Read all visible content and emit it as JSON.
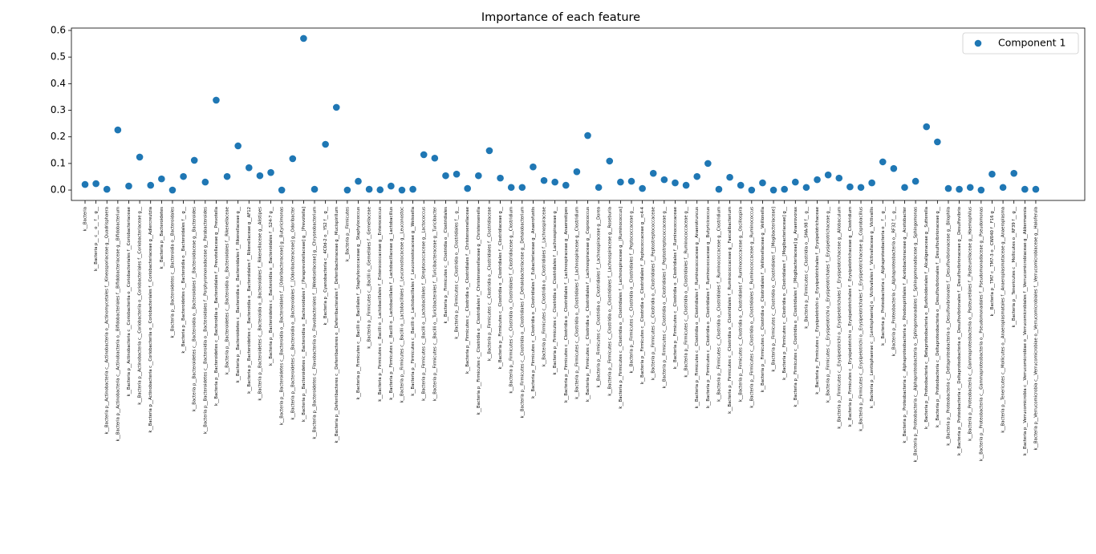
{
  "chart_data": {
    "type": "scatter",
    "title": "Importance of each feature",
    "categories": [
      "k__Bacteria",
      "k__Bacteria p__ c__ o__ f__ g__",
      "k__Bacteria p__Actinobacteria c__Actinobacteria o__Actinomycetales f__Kineosporiaceae g__Quadrisphaera",
      "k__Bacteria p__Actinobacteria c__Actinobacteria o__Bifidobacteriales f__Bifidobacteriaceae g__Bifidobacterium",
      "k__Bacteria p__Actinobacteria c__Coriobacteriia o__Coriobacteriales f__Coriobacteriaceae",
      "k__Bacteria p__Actinobacteria c__Coriobacteriia o__Coriobacteriales f__Coriobacteriaceae g__",
      "k__Bacteria p__Actinobacteria c__Coriobacteriia o__Coriobacteriales f__Coriobacteriaceae g__Adlercreutzia",
      "k__Bacteria p__Bacteroidetes",
      "k__Bacteria p__Bacteroidetes c__Bacteroidia o__Bacteroidales",
      "k__Bacteria p__Bacteroidetes c__Bacteroidia o__Bacteroidales f__ g__",
      "k__Bacteria p__Bacteroidetes c__Bacteroidia o__Bacteroidales f__Bacteroidaceae g__Bacteroides",
      "k__Bacteria p__Bacteroidetes c__Bacteroidia o__Bacteroidales f__Porphyromonadaceae g__Parabacteroides",
      "k__Bacteria p__Bacteroidetes c__Bacteroidia o__Bacteroidales f__Prevotellaceae g__Prevotella",
      "k__Bacteria p__Bacteroidetes c__Bacteroidia o__Bacteroidales f__Rikenellaceae",
      "k__Bacteria p__Bacteroidetes c__Bacteroidia o__Bacteroidales f__Rikenellaceae g__",
      "k__Bacteria p__Bacteroidetes c__Bacteroidia o__Bacteroidales f__Rikenellaceae g__AF12",
      "k__Bacteria p__Bacteroidetes c__Bacteroidia o__Bacteroidales f__Rikenellaceae g__Alistipes",
      "k__Bacteria p__Bacteroidetes c__Bacteroidia o__Bacteroidales f__S24-7 g__",
      "k__Bacteria p__Bacteroidetes c__Bacteroidia o__Bacteroidales f__[Odoribacteraceae] g__Butyricimonas",
      "k__Bacteria p__Bacteroidetes c__Bacteroidia o__Bacteroidales f__[Odoribacteraceae] g__Odoribacter",
      "k__Bacteria p__Bacteroidetes c__Bacteroidia o__Bacteroidales f__[Paraprevotellaceae] g__[Prevotella]",
      "k__Bacteria p__Bacteroidetes c__Flavobacteriia o__Flavobacteriales f__[Weeksellaceae] g__Chryseobacterium",
      "k__Bacteria p__Cyanobacteria c__4C0d-2 o__YS2 f__ g__",
      "k__Bacteria p__Deferribacteres c__Deferribacteres o__Deferribacterales f__Deferribacteraceae g__Mucispirillum",
      "k__Bacteria p__Firmicutes",
      "k__Bacteria p__Firmicutes c__Bacilli o__Bacillales f__Staphylococcaceae g__Staphylococcus",
      "k__Bacteria p__Firmicutes c__Bacilli o__Gemellales f__Gemellaceae",
      "k__Bacteria p__Firmicutes c__Bacilli o__Lactobacillales f__Enterococcaceae g__Enterococcus",
      "k__Bacteria p__Firmicutes c__Bacilli o__Lactobacillales f__Lactobacillaceae g__Lactobacillus",
      "k__Bacteria p__Firmicutes c__Bacilli o__Lactobacillales f__Leuconostocaceae g__Leuconostoc",
      "k__Bacteria p__Firmicutes c__Bacilli o__Lactobacillales f__Leuconostocaceae g__Weissella",
      "k__Bacteria p__Firmicutes c__Bacilli o__Lactobacillales f__Streptococcaceae g__Lactococcus",
      "k__Bacteria p__Firmicutes c__Bacilli o__Turicibacterales f__Turicibacteraceae g__Turicibacter",
      "k__Bacteria p__Firmicutes c__Clostridia o__Clostridiales",
      "k__Bacteria p__Firmicutes c__Clostridia o__Clostridiales f__ g__",
      "k__Bacteria p__Firmicutes c__Clostridia o__Clostridiales f__Christensenellaceae",
      "k__Bacteria p__Firmicutes c__Clostridia o__Clostridiales f__Christensenellaceae g__Christensenella",
      "k__Bacteria p__Firmicutes c__Clostridia o__Clostridiales f__Clostridiaceae",
      "k__Bacteria p__Firmicutes c__Clostridia o__Clostridiales f__Clostridiaceae g__",
      "k__Bacteria p__Firmicutes c__Clostridia o__Clostridiales f__Clostridiaceae g__Clostridium",
      "k__Bacteria p__Firmicutes c__Clostridia o__Clostridiales f__Dehalobacteriaceae g__Dehalobacterium",
      "k__Bacteria p__Firmicutes c__Clostridia o__Clostridiales f__Eubacteriaceae g__Anaerofustis",
      "k__Bacteria p__Firmicutes c__Clostridia o__Clostridiales f__Lachnospiraceae",
      "k__Bacteria p__Firmicutes c__Clostridia o__Clostridiales f__Lachnospiraceae g__",
      "k__Bacteria p__Firmicutes c__Clostridia o__Clostridiales f__Lachnospiraceae g__Anaerostipes",
      "k__Bacteria p__Firmicutes c__Clostridia o__Clostridiales f__Lachnospiraceae g__Clostridium",
      "k__Bacteria p__Firmicutes c__Clostridia o__Clostridiales f__Lachnospiraceae g__Coprococcus",
      "k__Bacteria p__Firmicutes c__Clostridia o__Clostridiales f__Lachnospiraceae g__Dorea",
      "k__Bacteria p__Firmicutes c__Clostridia o__Clostridiales f__Lachnospiraceae g__Roseburia",
      "k__Bacteria p__Firmicutes c__Clostridia o__Clostridiales f__Lachnospiraceae g__[Ruminococcus]",
      "k__Bacteria p__Firmicutes c__Clostridia o__Clostridiales f__Peptococcaceae g__",
      "k__Bacteria p__Firmicutes c__Clostridia o__Clostridiales f__Peptococcaceae g__rc4-4",
      "k__Bacteria p__Firmicutes c__Clostridia o__Clostridiales f__Peptostreptococcaceae",
      "k__Bacteria p__Firmicutes c__Clostridia o__Clostridiales f__Peptostreptococcaceae g__",
      "k__Bacteria p__Firmicutes c__Clostridia o__Clostridiales f__Ruminococcaceae",
      "k__Bacteria p__Firmicutes c__Clostridia o__Clostridiales f__Ruminococcaceae g__",
      "k__Bacteria p__Firmicutes c__Clostridia o__Clostridiales f__Ruminococcaceae g__Anaerotruncus",
      "k__Bacteria p__Firmicutes c__Clostridia o__Clostridiales f__Ruminococcaceae g__Butyricicoccus",
      "k__Bacteria p__Firmicutes c__Clostridia o__Clostridiales f__Ruminococcaceae g__Clostridium",
      "k__Bacteria p__Firmicutes c__Clostridia o__Clostridiales f__Ruminococcaceae g__Faecalibacterium",
      "k__Bacteria p__Firmicutes c__Clostridia o__Clostridiales f__Ruminococcaceae g__Oscillospira",
      "k__Bacteria p__Firmicutes c__Clostridia o__Clostridiales f__Ruminococcaceae g__Ruminococcus",
      "k__Bacteria p__Firmicutes c__Clostridia o__Clostridiales f__Veillonellaceae g__Veillonella",
      "k__Bacteria p__Firmicutes c__Clostridia o__Clostridiales f__[Mogibacteriaceae]",
      "k__Bacteria p__Firmicutes c__Clostridia o__Clostridiales f__[Mogibacteriaceae] g__",
      "k__Bacteria p__Firmicutes c__Clostridia o__Clostridiales f__[Mogibacteriaceae] g__Anaerovorax",
      "k__Bacteria p__Firmicutes c__Clostridia o__SHA-98 f__ g__",
      "k__Bacteria p__Firmicutes c__Erysipelotrichi o__Erysipelotrichales f__Erysipelotrichaceae",
      "k__Bacteria p__Firmicutes c__Erysipelotrichi o__Erysipelotrichales f__Erysipelotrichaceae g__",
      "k__Bacteria p__Firmicutes c__Erysipelotrichi o__Erysipelotrichales f__Erysipelotrichaceae g__Allobaculum",
      "k__Bacteria p__Firmicutes c__Erysipelotrichi o__Erysipelotrichales f__Erysipelotrichaceae g__Clostridium",
      "k__Bacteria p__Firmicutes c__Erysipelotrichi o__Erysipelotrichales f__Erysipelotrichaceae g__Coprobacillus",
      "k__Bacteria p__Lentisphaerae c__[Lentisphaeria] o__Victivallales f__Victivallaceae g__Victivallis",
      "k__Bacteria p__Proteobacteria c__Alphaproteobacteria o__ f__ g__",
      "k__Bacteria p__Proteobacteria c__Alphaproteobacteria o__RF32 f__ g__",
      "k__Bacteria p__Proteobacteria c__Alphaproteobacteria o__Rhodospirillales f__Acetobacteraceae g__Acetobacter",
      "k__Bacteria p__Proteobacteria c__Alphaproteobacteria o__Sphingomonadales f__Sphingomonadaceae g__Sphingomonas",
      "k__Bacteria p__Proteobacteria c__Betaproteobacteria o__Burkholderiales f__Alcaligenaceae g__Sutterella",
      "k__Bacteria p__Proteobacteria c__Deltaproteobacteria o__Desulfovibrionales f__Desulfovibrionaceae g__",
      "k__Bacteria p__Proteobacteria c__Deltaproteobacteria o__Desulfovibrionales f__Desulfovibrionaceae g__Bilophila",
      "k__Bacteria p__Proteobacteria c__Deltaproteobacteria o__Desulfovibrionales f__Desulfovibrionaceae g__Desulfovibrio",
      "k__Bacteria p__Proteobacteria c__Gammaproteobacteria o__Pasteurellales f__Pasteurellaceae g__Haemophilus",
      "k__Bacteria p__Proteobacteria c__Gammaproteobacteria o__Pseudomonadales f__Pseudomonadaceae g__Pseudomonas",
      "k__Bacteria p__TM7 c__TM7-3 o__CW040 f__F16 g__",
      "k__Bacteria p__Tenericutes c__Mollicutes o__Anaeroplasmatales f__Anaeroplasmataceae g__Anaeroplasma",
      "k__Bacteria p__Tenericutes c__Mollicutes o__RF39 f__ g__",
      "k__Bacteria p__Verrucomicrobia c__Verrucomicrobiae o__Verrucomicrobiales f__Verrucomicrobiaceae g__Akkermansia",
      "k__Bacteria p__Verrucomicrobia c__Verrucomicrobiae o__Verrucomicrobiales f__Verrucomicrobiaceae g__Haloferula"
    ],
    "series": [
      {
        "name": "Component 1",
        "color": "#1f77b4",
        "values": [
          0.021,
          0.024,
          0.003,
          0.226,
          0.015,
          0.124,
          0.018,
          0.042,
          0,
          0.051,
          0.112,
          0.03,
          0.338,
          0.051,
          0.166,
          0.084,
          0.054,
          0.066,
          0,
          0.118,
          0.57,
          0.003,
          0.172,
          0.311,
          0,
          0.033,
          0.003,
          0.001,
          0.015,
          0,
          0.003,
          0.133,
          0.12,
          0.054,
          0.06,
          0.006,
          0.054,
          0.148,
          0.045,
          0.01,
          0.01,
          0.087,
          0.036,
          0.03,
          0.018,
          0.069,
          0.205,
          0.01,
          0.109,
          0.03,
          0.033,
          0.006,
          0.063,
          0.039,
          0.027,
          0.018,
          0.051,
          0.1,
          0.003,
          0.048,
          0.018,
          0,
          0.027,
          0,
          0.003,
          0.03,
          0.01,
          0.039,
          0.057,
          0.045,
          0.012,
          0.01,
          0.027,
          0.106,
          0.081,
          0.01,
          0.033,
          0.238,
          0.181,
          0.006,
          0.003,
          0.01,
          0,
          0.06,
          0.01,
          0.063,
          0.003,
          0.003
        ]
      }
    ],
    "ylim": [
      -0.039,
      0.609
    ],
    "yticks": [
      {
        "value": 0,
        "label": "0.0"
      },
      0.1,
      0.2,
      0.3,
      0.4,
      0.5,
      0.6
    ],
    "grid": false,
    "legend": "upper right"
  }
}
